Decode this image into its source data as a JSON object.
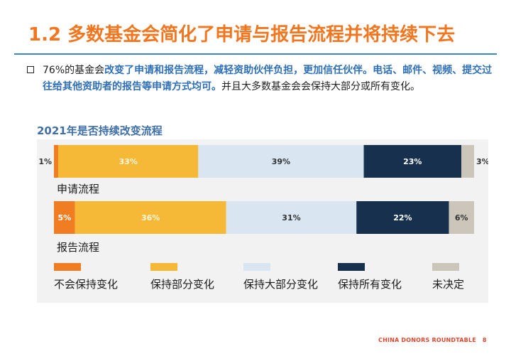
{
  "slide": {
    "title": "1.2 多数基金会简化了申请与报告流程并将持续下去",
    "paragraph": {
      "part1": "76%的基金会",
      "part2": "改变了申请和报告流程，减轻资助伙伴负担，更加信任伙伴。电话、邮件、视频、提交过往给其他资助者的报告等申请方式均可。",
      "part3": "并且大多数基金会会保持大部分或所有变化。"
    },
    "footer": {
      "text": "CHINA DONORS ROUNDTABLE",
      "page": "8"
    }
  },
  "chart_data": {
    "type": "bar",
    "orientation": "horizontal",
    "stacked": true,
    "title": "2021年是否持续改变流程",
    "categories": [
      "申请流程",
      "报告流程"
    ],
    "value_unit": "%",
    "series": [
      {
        "name": "不会保持变化",
        "color": "#f07d22",
        "values": [
          1,
          5
        ],
        "labels": [
          "1%",
          "5%"
        ]
      },
      {
        "name": "保持部分变化",
        "color": "#f5b937",
        "values": [
          33,
          36
        ],
        "labels": [
          "33%",
          "36%"
        ]
      },
      {
        "name": "保持大部分变化",
        "color": "#d9e6f2",
        "values": [
          39,
          31
        ],
        "labels": [
          "39%",
          "31%"
        ]
      },
      {
        "name": "保持所有变化",
        "color": "#16304d",
        "values": [
          23,
          22
        ],
        "labels": [
          "23%",
          "22%"
        ]
      },
      {
        "name": "未决定",
        "color": "#cbc5ba",
        "values": [
          3,
          6
        ],
        "labels": [
          "3%",
          "6%"
        ]
      }
    ],
    "legend_position": "bottom",
    "grid": false
  }
}
